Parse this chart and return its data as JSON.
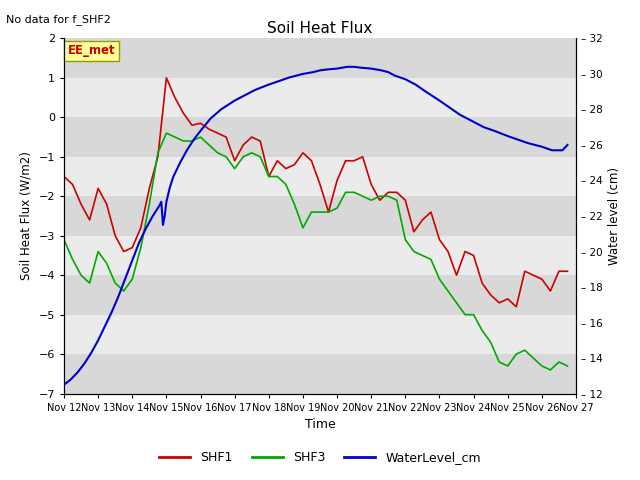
{
  "title": "Soil Heat Flux",
  "subtitle": "No data for f_SHF2",
  "xlabel": "Time",
  "ylabel_left": "Soil Heat Flux (W/m2)",
  "ylabel_right": "Water level (cm)",
  "annotation": "EE_met",
  "ylim_left": [
    -7.0,
    2.0
  ],
  "ylim_right": [
    12,
    32
  ],
  "yticks_left": [
    -7.0,
    -6.0,
    -5.0,
    -4.0,
    -3.0,
    -2.0,
    -1.0,
    0.0,
    1.0,
    2.0
  ],
  "yticks_right": [
    12,
    14,
    16,
    18,
    20,
    22,
    24,
    26,
    28,
    30,
    32
  ],
  "ytick_right_labels": [
    "12",
    "14",
    "16",
    "18",
    "20",
    "22",
    "24",
    "26",
    "28",
    "30",
    "32"
  ],
  "xtick_positions": [
    12,
    13,
    14,
    15,
    16,
    17,
    18,
    19,
    20,
    21,
    22,
    23,
    24,
    25,
    26,
    27
  ],
  "xtick_labels": [
    "Nov 12",
    "Nov 13",
    "Nov 14",
    "Nov 15",
    "Nov 16",
    "Nov 17",
    "Nov 18",
    "Nov 19",
    "Nov 20",
    "Nov 21",
    "Nov 22",
    "Nov 23",
    "Nov 24",
    "Nov 25",
    "Nov 26",
    "Nov 27"
  ],
  "bg_dark": "#d8d8d8",
  "bg_light": "#ebebeb",
  "shf1_color": "#cc0000",
  "shf3_color": "#00aa00",
  "water_color": "#0000cc",
  "shf1_x": [
    12.0,
    12.25,
    12.5,
    12.75,
    13.0,
    13.25,
    13.5,
    13.75,
    14.0,
    14.25,
    14.5,
    14.75,
    15.0,
    15.25,
    15.5,
    15.75,
    16.0,
    16.25,
    16.5,
    16.75,
    17.0,
    17.25,
    17.5,
    17.75,
    18.0,
    18.25,
    18.5,
    18.75,
    19.0,
    19.25,
    19.5,
    19.75,
    20.0,
    20.25,
    20.5,
    20.75,
    21.0,
    21.25,
    21.5,
    21.75,
    22.0,
    22.25,
    22.5,
    22.75,
    23.0,
    23.25,
    23.5,
    23.75,
    24.0,
    24.25,
    24.5,
    24.75,
    25.0,
    25.25,
    25.5,
    25.75,
    26.0,
    26.25,
    26.5,
    26.75
  ],
  "shf1_y": [
    -1.5,
    -1.7,
    -2.2,
    -2.6,
    -1.8,
    -2.2,
    -3.0,
    -3.4,
    -3.3,
    -2.8,
    -1.8,
    -1.0,
    1.0,
    0.5,
    0.1,
    -0.2,
    -0.15,
    -0.3,
    -0.4,
    -0.5,
    -1.1,
    -0.7,
    -0.5,
    -0.6,
    -1.5,
    -1.1,
    -1.3,
    -1.2,
    -0.9,
    -1.1,
    -1.7,
    -2.4,
    -1.6,
    -1.1,
    -1.1,
    -1.0,
    -1.7,
    -2.1,
    -1.9,
    -1.9,
    -2.1,
    -2.9,
    -2.6,
    -2.4,
    -3.1,
    -3.4,
    -4.0,
    -3.4,
    -3.5,
    -4.2,
    -4.5,
    -4.7,
    -4.6,
    -4.8,
    -3.9,
    -4.0,
    -4.1,
    -4.4,
    -3.9,
    -3.9
  ],
  "shf3_x": [
    12.0,
    12.25,
    12.5,
    12.75,
    13.0,
    13.25,
    13.5,
    13.75,
    14.0,
    14.25,
    14.5,
    14.75,
    15.0,
    15.25,
    15.5,
    15.75,
    16.0,
    16.25,
    16.5,
    16.75,
    17.0,
    17.25,
    17.5,
    17.75,
    18.0,
    18.25,
    18.5,
    18.75,
    19.0,
    19.25,
    19.5,
    19.75,
    20.0,
    20.25,
    20.5,
    20.75,
    21.0,
    21.25,
    21.5,
    21.75,
    22.0,
    22.25,
    22.5,
    22.75,
    23.0,
    23.25,
    23.5,
    23.75,
    24.0,
    24.25,
    24.5,
    24.75,
    25.0,
    25.25,
    25.5,
    25.75,
    26.0,
    26.25,
    26.5,
    26.75
  ],
  "shf3_y": [
    -3.1,
    -3.6,
    -4.0,
    -4.2,
    -3.4,
    -3.7,
    -4.2,
    -4.4,
    -4.1,
    -3.3,
    -2.2,
    -0.9,
    -0.4,
    -0.5,
    -0.6,
    -0.6,
    -0.5,
    -0.7,
    -0.9,
    -1.0,
    -1.3,
    -1.0,
    -0.9,
    -1.0,
    -1.5,
    -1.5,
    -1.7,
    -2.2,
    -2.8,
    -2.4,
    -2.4,
    -2.4,
    -2.3,
    -1.9,
    -1.9,
    -2.0,
    -2.1,
    -2.0,
    -2.0,
    -2.1,
    -3.1,
    -3.4,
    -3.5,
    -3.6,
    -4.1,
    -4.4,
    -4.7,
    -5.0,
    -5.0,
    -5.4,
    -5.7,
    -6.2,
    -6.3,
    -6.0,
    -5.9,
    -6.1,
    -6.3,
    -6.4,
    -6.2,
    -6.3
  ],
  "water_x": [
    12.0,
    12.2,
    12.4,
    12.6,
    12.8,
    13.0,
    13.2,
    13.4,
    13.6,
    13.8,
    14.0,
    14.2,
    14.4,
    14.6,
    14.8,
    14.85,
    14.9,
    14.95,
    15.0,
    15.05,
    15.1,
    15.2,
    15.4,
    15.6,
    15.8,
    16.0,
    16.3,
    16.6,
    17.0,
    17.3,
    17.6,
    18.0,
    18.3,
    18.6,
    19.0,
    19.3,
    19.5,
    19.7,
    20.0,
    20.3,
    20.5,
    20.7,
    21.0,
    21.3,
    21.5,
    21.7,
    22.0,
    22.3,
    22.6,
    23.0,
    23.3,
    23.6,
    24.0,
    24.3,
    24.6,
    25.0,
    25.3,
    25.6,
    26.0,
    26.3,
    26.6,
    26.75
  ],
  "water_y": [
    12.5,
    12.8,
    13.2,
    13.7,
    14.3,
    15.0,
    15.8,
    16.6,
    17.5,
    18.5,
    19.5,
    20.5,
    21.3,
    22.0,
    22.6,
    22.8,
    21.5,
    22.0,
    22.8,
    23.2,
    23.6,
    24.2,
    25.0,
    25.7,
    26.3,
    26.8,
    27.5,
    28.0,
    28.5,
    28.8,
    29.1,
    29.4,
    29.6,
    29.8,
    30.0,
    30.1,
    30.2,
    30.25,
    30.3,
    30.4,
    30.4,
    30.35,
    30.3,
    30.2,
    30.1,
    29.9,
    29.7,
    29.4,
    29.0,
    28.5,
    28.1,
    27.7,
    27.3,
    27.0,
    26.8,
    26.5,
    26.3,
    26.1,
    25.9,
    25.7,
    25.7,
    26.0
  ]
}
